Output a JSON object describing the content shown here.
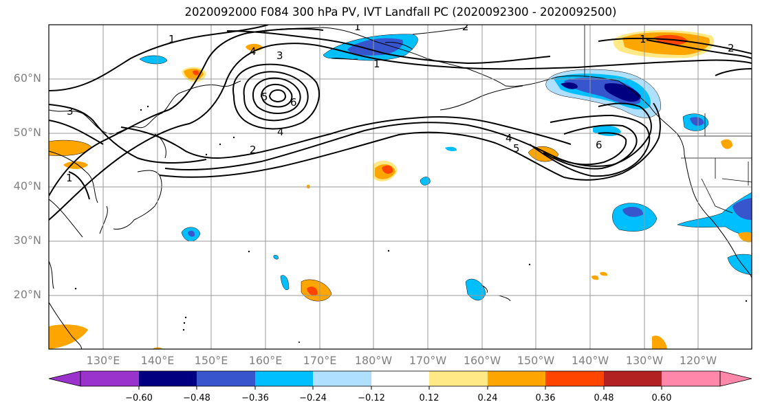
{
  "title": "2020092000 F084 300 hPa PV, IVT Landfall PC (2020092300 - 2020092500)",
  "lat_labels": [
    "60°N",
    "50°N",
    "40°N",
    "30°N",
    "20°N"
  ],
  "lon_labels": [
    "130°E",
    "140°E",
    "150°E",
    "160°E",
    "170°E",
    "180°W",
    "170°W",
    "160°W",
    "150°W",
    "140°W",
    "130°W",
    "120°W"
  ],
  "colorbar": {
    "tick_labels": [
      "−0.60",
      "−0.48",
      "−0.36",
      "−0.24",
      "−0.12",
      "0.12",
      "0.24",
      "0.36",
      "0.48",
      "0.60"
    ],
    "colors": [
      "#9933cc",
      "#000080",
      "#3755cc",
      "#00bfff",
      "#b0e0ff",
      "#ffffff",
      "#ffe987",
      "#ffa500",
      "#ff4500",
      "#b22222",
      "#ff88aa"
    ]
  },
  "contour_labels": [
    "1",
    "1",
    "1",
    "1",
    "2",
    "2",
    "3",
    "3",
    "4",
    "4",
    "5",
    "6",
    "6",
    "4",
    "5",
    "1",
    "2"
  ],
  "palette": {
    "positive": [
      "#ffe987",
      "#ffa500",
      "#ff4500"
    ],
    "negative": [
      "#b0e0ff",
      "#00bfff",
      "#3755cc",
      "#000080"
    ]
  }
}
